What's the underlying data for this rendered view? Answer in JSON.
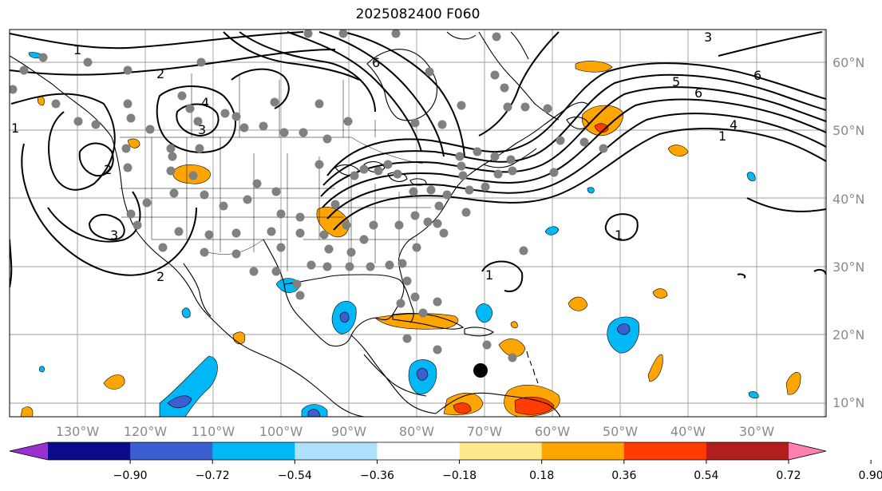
{
  "title": "2025082400 F060",
  "longitude_labels": [
    "130°W",
    "120°W",
    "110°W",
    "100°W",
    "90°W",
    "80°W",
    "70°W",
    "60°W",
    "50°W",
    "40°W",
    "30°W"
  ],
  "latitude_labels": [
    "60°N",
    "50°N",
    "40°N",
    "30°N",
    "20°N",
    "10°N"
  ],
  "colorbar": {
    "ticks": [
      "−0.90",
      "−0.72",
      "−0.54",
      "−0.36",
      "−0.18",
      "0.18",
      "0.36",
      "0.54",
      "0.72",
      "0.90"
    ],
    "colors": [
      "#9b30d0",
      "#0a0a8a",
      "#3b5fd0",
      "#00b8f5",
      "#ade1fb",
      "#ffffff",
      "#ffe98a",
      "#ffa500",
      "#ff3c00",
      "#b01e1e",
      "#ff7fb0"
    ]
  },
  "contour_labels": [
    "1",
    "2",
    "3",
    "4",
    "6",
    "2",
    "3",
    "1",
    "6",
    "5",
    "6",
    "4",
    "1",
    "1",
    "1",
    "2",
    "3"
  ],
  "colors": {
    "positive_fill": "#ffa500",
    "strong_positive_fill": "#ff3c00",
    "negative_fill": "#00b8f5",
    "strong_negative_fill": "#3b5fd0",
    "station_marker": "#808080",
    "storm_marker": "#000000"
  }
}
